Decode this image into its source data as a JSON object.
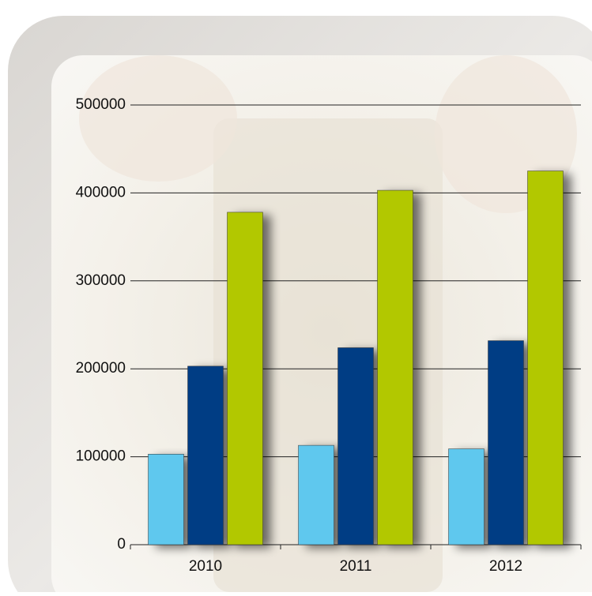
{
  "chart_data": {
    "type": "bar",
    "categories": [
      "2010",
      "2011",
      "2012"
    ],
    "series": [
      {
        "color": "#5ec8ee",
        "values": [
          103000,
          113000,
          109000
        ]
      },
      {
        "color": "#033e84",
        "values": [
          203000,
          224000,
          232000
        ]
      },
      {
        "color": "#b2c800",
        "values": [
          378000,
          403000,
          425000
        ]
      }
    ],
    "ylim": [
      0,
      500000
    ],
    "yticks": [
      0,
      100000,
      200000,
      300000,
      400000,
      500000
    ],
    "grid": true
  }
}
